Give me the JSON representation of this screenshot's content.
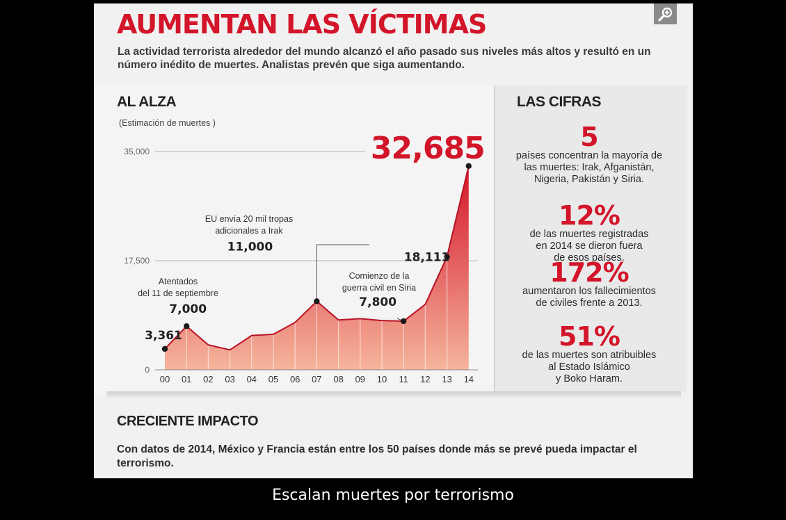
{
  "header": {
    "title": "AUMENTAN LAS VÍCTIMAS",
    "subtitle": "La actividad terrorista alrededor del mundo alcanzó el año pasado sus niveles más altos y resultó en un número inédito de muertes. Analistas prevén que siga aumentando.",
    "zoom_icon": "zoom-in-icon"
  },
  "chart_data": {
    "type": "area",
    "title": "AL ALZA",
    "subtitle": "(Estimación de muertes )",
    "categories": [
      "00",
      "01",
      "02",
      "03",
      "04",
      "05",
      "06",
      "07",
      "08",
      "09",
      "10",
      "11",
      "12",
      "13",
      "14"
    ],
    "values": [
      3361,
      7000,
      4000,
      3200,
      5500,
      5700,
      7600,
      11000,
      8000,
      8200,
      7900,
      7800,
      10500,
      18111,
      32685
    ],
    "ylim": [
      0,
      35000
    ],
    "yticks": [
      {
        "value": 0,
        "label": "0"
      },
      {
        "value": 17500,
        "label": "17,500"
      },
      {
        "value": 35000,
        "label": "35,000"
      }
    ],
    "labeled_points": [
      {
        "index": 0,
        "label": "3,361"
      },
      {
        "index": 1,
        "label": "7,000"
      },
      {
        "index": 7,
        "label": "11,000"
      },
      {
        "index": 11,
        "label": "7,800"
      },
      {
        "index": 13,
        "label": "18,111"
      },
      {
        "index": 14,
        "label": "32,685"
      }
    ],
    "annotations": [
      {
        "index": 1,
        "line1": "Atentados",
        "line2": "del 11 de septiembre"
      },
      {
        "index": 7,
        "line1": "EU envía 20 mil tropas",
        "line2": "adicionales a Irak"
      },
      {
        "index": 11,
        "line1": "Comienzo de la",
        "line2": "guerra civil en Siria"
      }
    ],
    "colors": {
      "top": "#d3152a",
      "bottom": "#f6b49c",
      "line": "#b81225",
      "label_red": "#d3152a"
    }
  },
  "facts": {
    "title": "LAS CIFRAS",
    "items": [
      {
        "value": "5",
        "text": [
          "países concentran la mayoría de",
          "las muertes: Irak, Afganistán,",
          "Nigeria, Pakistán y Siria."
        ]
      },
      {
        "value": "12%",
        "text": [
          "de las muertes registradas",
          "en 2014 se dieron fuera",
          "de esos países."
        ]
      },
      {
        "value": "172%",
        "text": [
          "aumentaron los fallecimientos",
          "de civiles frente a 2013."
        ]
      },
      {
        "value": "51%",
        "text": [
          "de las muertes son atribuibles",
          "al Estado Islámico",
          "y Boko Haram."
        ]
      }
    ]
  },
  "impact": {
    "title": "CRECIENTE IMPACTO",
    "body": "Con datos de 2014, México y Francia están entre los 50 países donde más se prevé pueda impactar el terrorismo."
  },
  "caption": "Escalan muertes por terrorismo"
}
